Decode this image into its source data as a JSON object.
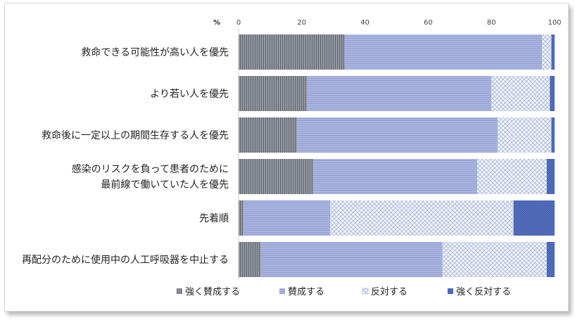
{
  "chart_data": {
    "type": "bar",
    "stacked": true,
    "orientation": "horizontal",
    "unit_label": "%",
    "xlim": [
      0,
      100
    ],
    "x_ticks": [
      "0",
      "20",
      "40",
      "60",
      "80",
      "100"
    ],
    "categories": [
      [
        "救命できる可能性が高い人を優先"
      ],
      [
        "より若い人を優先"
      ],
      [
        "救命後に一定以上の期間生存する人を優先"
      ],
      [
        "感染のリスクを負って患者のために",
        "最前線で働いていた人を優先"
      ],
      [
        "先着順"
      ],
      [
        "再配分のために使用中の人工呼吸器を中止する"
      ]
    ],
    "series": [
      {
        "name": "強く賛成する",
        "values": [
          33.5,
          21.5,
          18.5,
          23.5,
          1.5,
          7.0
        ]
      },
      {
        "name": "賛成する",
        "values": [
          62.5,
          58.5,
          63.5,
          52.0,
          27.5,
          57.5
        ]
      },
      {
        "name": "反対する",
        "values": [
          3.0,
          18.5,
          17.0,
          22.0,
          58.0,
          33.0
        ]
      },
      {
        "name": "強く反対する",
        "values": [
          1.0,
          1.5,
          1.0,
          2.5,
          13.0,
          2.5
        ]
      }
    ],
    "colors": [
      "#8c8f97",
      "#a6b2de",
      "#c9d0ea",
      "#6179c6"
    ],
    "legend_position": "bottom",
    "grid": false
  }
}
